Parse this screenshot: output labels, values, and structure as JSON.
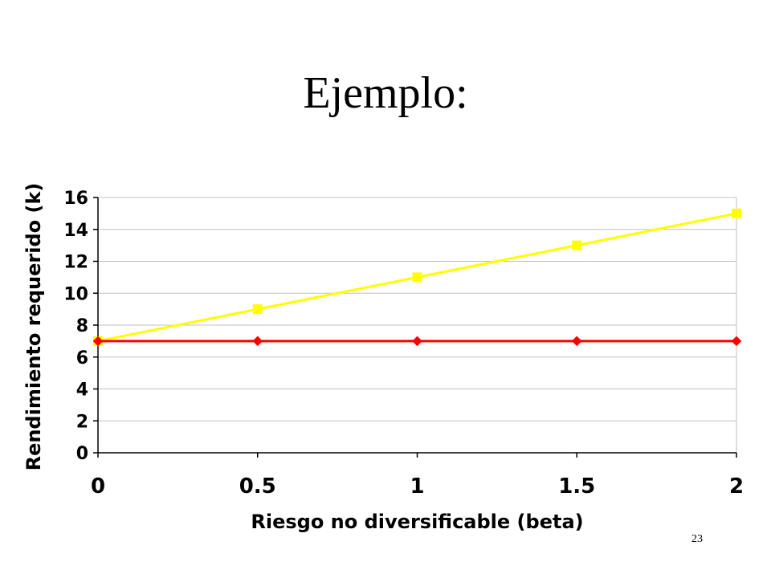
{
  "slide": {
    "title": "Ejemplo:",
    "page_number": "23"
  },
  "chart_data": {
    "type": "line",
    "title": "",
    "xlabel": "Riesgo no diversificable (beta)",
    "ylabel": "Rendimiento requerido (k)",
    "x": [
      0,
      0.5,
      1,
      1.5,
      2
    ],
    "x_tick_labels": [
      "0",
      "0.5",
      "1",
      "1.5",
      "2"
    ],
    "xlim": [
      0,
      2
    ],
    "ylim": [
      0,
      16
    ],
    "y_ticks": [
      0,
      2,
      4,
      6,
      8,
      10,
      12,
      14,
      16
    ],
    "y_tick_labels": [
      "0",
      "2",
      "4",
      "6",
      "8",
      "10",
      "12",
      "14",
      "16"
    ],
    "grid": true,
    "legend": "none",
    "series": [
      {
        "values": [
          7,
          9,
          11,
          13,
          15
        ],
        "color": "#ffff00",
        "marker": "square"
      },
      {
        "values": [
          7,
          7,
          7,
          7,
          7
        ],
        "color": "#ff0000",
        "marker": "diamond"
      }
    ]
  }
}
